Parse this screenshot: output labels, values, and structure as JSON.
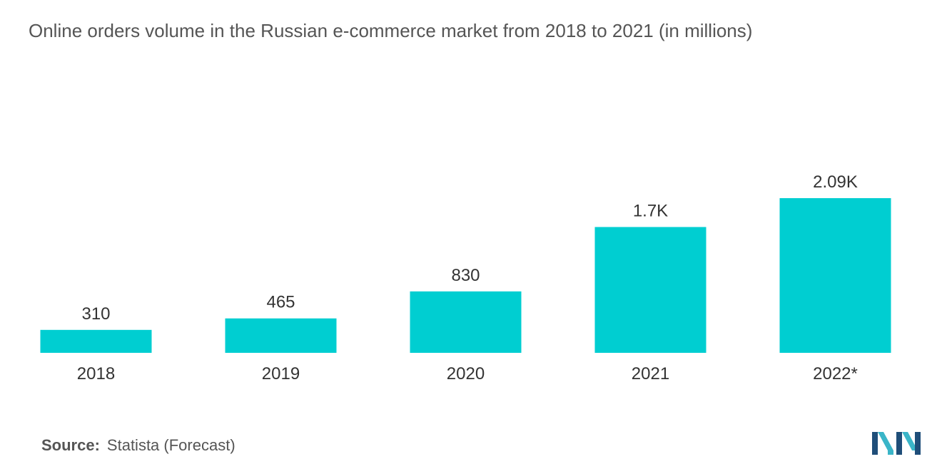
{
  "title": "Online orders volume in the Russian e-commerce market from 2018 to 2021 (in millions)",
  "source": {
    "label": "Source:",
    "text": "Statista (Forecast)"
  },
  "colors": {
    "bar": "#00CED1",
    "text": "#333333",
    "title": "#555555",
    "logo_dark": "#1F4E79",
    "logo_light": "#3AB5C8"
  },
  "chart_data": {
    "type": "bar",
    "title": "Online orders volume in the Russian e-commerce market from 2018 to 2021 (in millions)",
    "xlabel": "",
    "ylabel": "",
    "categories": [
      "2018",
      "2019",
      "2020",
      "2021",
      "2022*"
    ],
    "values": [
      310,
      465,
      830,
      1700,
      2090
    ],
    "data_labels": [
      "310",
      "465",
      "830",
      "1.7K",
      "2.09K"
    ],
    "grid": false,
    "legend": "none"
  }
}
